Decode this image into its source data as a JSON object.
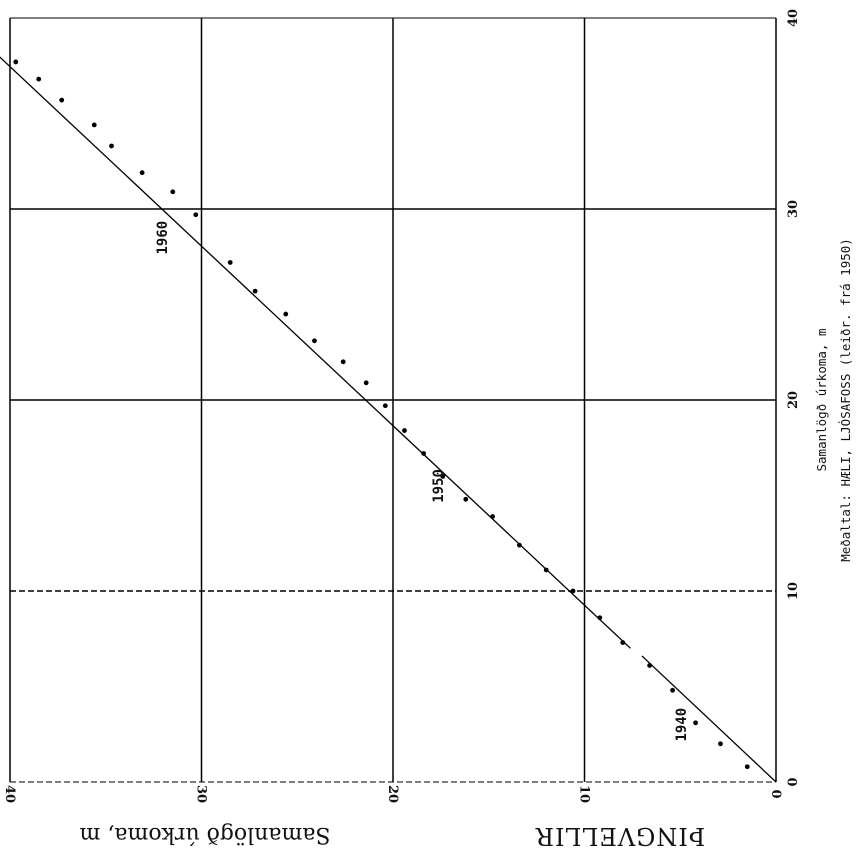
{
  "chart_data": {
    "type": "scatter",
    "title": "ÞINGVELLIR",
    "xlabel": "Samanlögð úrkoma, m",
    "ylabel": "Samanlögð úrkoma, m",
    "ylabel_line2": "Meðaltal: HÆLI, LJÓSAFOSS (leiðr. frá 1950)",
    "x_range": [
      0,
      40
    ],
    "y_range": [
      0,
      40
    ],
    "x_ticks": [
      0,
      10,
      20,
      30,
      40
    ],
    "y_ticks": [
      0,
      10,
      20,
      30,
      40
    ],
    "x_tick_labels": [
      "0",
      "10",
      "20",
      "30",
      "40"
    ],
    "y_tick_labels": [
      "0",
      "10",
      "20",
      "30",
      "40"
    ],
    "grid": true,
    "annotations": [
      {
        "text": "1940",
        "x": 3.0,
        "y": 4.7
      },
      {
        "text": "1950",
        "x": 15.5,
        "y": 17.4
      },
      {
        "text": "1960",
        "x": 28.5,
        "y": 31.8
      }
    ],
    "points": [
      {
        "x": 0.8,
        "y": 1.5
      },
      {
        "x": 2.0,
        "y": 2.9
      },
      {
        "x": 3.1,
        "y": 4.2
      },
      {
        "x": 4.8,
        "y": 5.4
      },
      {
        "x": 6.1,
        "y": 6.6
      },
      {
        "x": 7.3,
        "y": 8.0
      },
      {
        "x": 8.6,
        "y": 9.2
      },
      {
        "x": 10.0,
        "y": 10.6
      },
      {
        "x": 11.1,
        "y": 12.0
      },
      {
        "x": 12.4,
        "y": 13.4
      },
      {
        "x": 13.9,
        "y": 14.8
      },
      {
        "x": 14.8,
        "y": 16.2
      },
      {
        "x": 16.0,
        "y": 17.4
      },
      {
        "x": 17.2,
        "y": 18.4
      },
      {
        "x": 18.4,
        "y": 19.4
      },
      {
        "x": 19.7,
        "y": 20.4
      },
      {
        "x": 20.9,
        "y": 21.4
      },
      {
        "x": 22.0,
        "y": 22.6
      },
      {
        "x": 23.1,
        "y": 24.1
      },
      {
        "x": 24.5,
        "y": 25.6
      },
      {
        "x": 25.7,
        "y": 27.2
      },
      {
        "x": 27.2,
        "y": 28.5
      },
      {
        "x": 29.7,
        "y": 30.3
      },
      {
        "x": 30.9,
        "y": 31.5
      },
      {
        "x": 31.9,
        "y": 33.1
      },
      {
        "x": 33.3,
        "y": 34.7
      },
      {
        "x": 34.4,
        "y": 35.6
      },
      {
        "x": 35.7,
        "y": 37.3
      },
      {
        "x": 36.8,
        "y": 38.5
      },
      {
        "x": 37.7,
        "y": 39.7
      }
    ],
    "fit_lines": [
      {
        "from": [
          0,
          0
        ],
        "to": [
          6.6,
          7.0
        ]
      },
      {
        "from": [
          7.0,
          7.6
        ],
        "to": [
          38.3,
          40.9
        ]
      }
    ]
  }
}
